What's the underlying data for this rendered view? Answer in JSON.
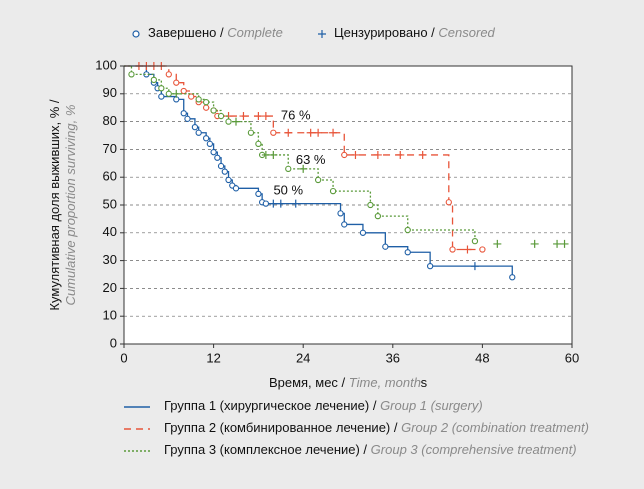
{
  "chart_data": {
    "type": "step",
    "legend_markers": [
      {
        "marker": "circle",
        "label": "Завершено /",
        "label_en": "Complete"
      },
      {
        "marker": "plus",
        "label": "Цензурировано /",
        "label_en": "Censored"
      }
    ],
    "xlabel": "Время, мес /",
    "xlabel_en": "Time, month",
    "xlabel_suffix": "s",
    "ylabel": "Кумулятивная доля выживших, % /",
    "ylabel_en": "Cumulative proportion surviving, %",
    "xlim": [
      0,
      60
    ],
    "xticks": [
      0,
      12,
      24,
      36,
      48,
      60
    ],
    "ylim": [
      0,
      100
    ],
    "yticks": [
      0,
      10,
      20,
      30,
      40,
      50,
      60,
      70,
      80,
      90,
      100
    ],
    "grid": true,
    "annotations": [
      {
        "text": "76 %",
        "x": 23,
        "y": 82
      },
      {
        "text": "63 %",
        "x": 25,
        "y": 66
      },
      {
        "text": "50 %",
        "x": 22,
        "y": 55
      }
    ],
    "series": [
      {
        "name": "Группа 1 (хирургическое лечение) /",
        "name_en": "Group 1 (surgery)",
        "color": "#1f5fa6",
        "dash": "solid",
        "x": [
          0,
          3,
          4,
          4.5,
          5,
          7,
          8,
          8.5,
          9.5,
          10,
          11,
          11.5,
          12,
          12.5,
          13,
          13.5,
          14,
          14.5,
          15,
          18,
          18.5,
          19,
          29,
          29.5,
          32,
          35,
          38,
          41,
          52
        ],
        "values": [
          100,
          97,
          94,
          92,
          89,
          88,
          83,
          81,
          78,
          76,
          74,
          72,
          69,
          67,
          64,
          62,
          59,
          57,
          56,
          54,
          51,
          50.5,
          47,
          43,
          40,
          35,
          33,
          28,
          24
        ],
        "censored_x": [
          20,
          21,
          23,
          47
        ],
        "censored_values": [
          50.5,
          50.5,
          50.5,
          28
        ]
      },
      {
        "name": "Группа 2 (комбинированное лечение) /",
        "name_en": "Group 2 (combination treatment)",
        "color": "#e8553a",
        "dash": "dashed",
        "x": [
          0,
          6,
          7,
          8,
          9,
          10,
          11,
          12,
          12.5,
          20,
          29.5,
          43.5,
          44,
          48
        ],
        "values": [
          100,
          97,
          94,
          91,
          89,
          87,
          85,
          84,
          82,
          76,
          68,
          51,
          34,
          34
        ],
        "censored_x": [
          2,
          3,
          4,
          5,
          14,
          16,
          18,
          19,
          22,
          25,
          26,
          28,
          31,
          34,
          37,
          40,
          46
        ],
        "censored_values": [
          100,
          100,
          100,
          100,
          82,
          82,
          82,
          82,
          76,
          76,
          76,
          76,
          68,
          68,
          68,
          68,
          34
        ]
      },
      {
        "name": "Группа 3 (комплексное лечение) /",
        "name_en": "Group 3 (comprehensive treatment)",
        "color": "#5a9a3a",
        "dash": "dotted",
        "x": [
          0,
          1,
          4,
          5,
          6,
          10,
          11,
          12,
          13,
          14,
          17,
          18,
          18.5,
          22,
          26,
          28,
          33,
          34,
          38,
          47
        ],
        "values": [
          100,
          97,
          95,
          92,
          90,
          88,
          87,
          84,
          82,
          80,
          76,
          72,
          68,
          63,
          59,
          55,
          50,
          46,
          41,
          37
        ],
        "censored_x": [
          7,
          15,
          19,
          20,
          24,
          50,
          55,
          58,
          59
        ],
        "censored_values": [
          90,
          80,
          68,
          68,
          63,
          36,
          36,
          36,
          36
        ]
      }
    ]
  }
}
